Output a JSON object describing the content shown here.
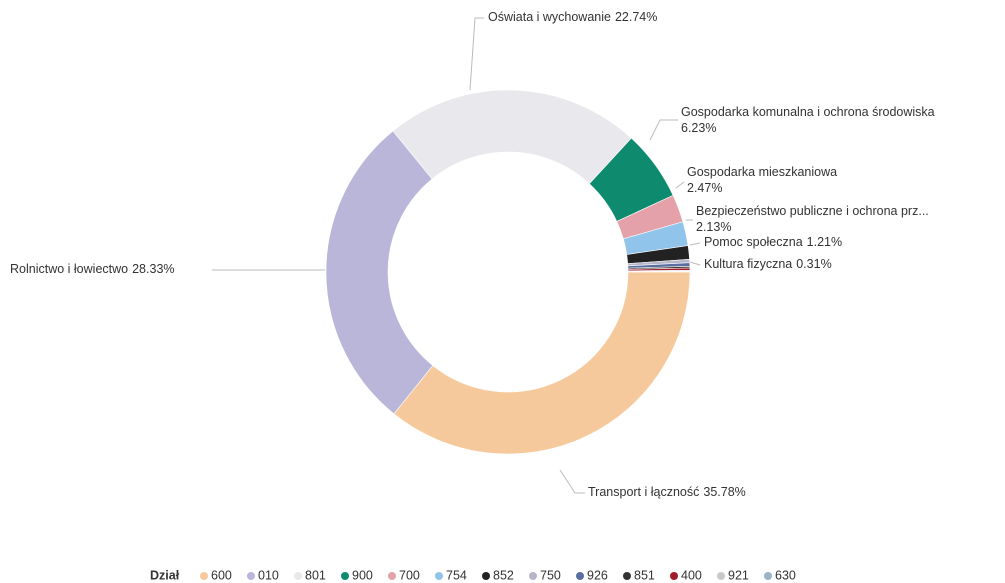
{
  "chart_data": {
    "type": "donut",
    "legend_title": "Dział",
    "series": [
      {
        "name": "600",
        "color": "#f6c99c",
        "label": "Transport i łączność",
        "values": [
          35.78
        ],
        "value_labels": [
          "35.78%"
        ]
      },
      {
        "name": "010",
        "color": "#b9b6da",
        "label": "Rolnictwo i łowiectwo",
        "values": [
          28.33
        ],
        "value_labels": [
          "28.33%"
        ]
      },
      {
        "name": "801",
        "color": "#e9e9ed",
        "label": "Oświata i wychowanie",
        "values": [
          22.74
        ],
        "value_labels": [
          "22.74%"
        ]
      },
      {
        "name": "900",
        "color": "#0e8a6e",
        "label": "Gospodarka komunalna i ochrona środowiska",
        "values": [
          6.23
        ],
        "value_labels": [
          "6.23%"
        ]
      },
      {
        "name": "700",
        "color": "#e4a1aa",
        "label": "Gospodarka mieszkaniowa",
        "values": [
          2.47
        ],
        "value_labels": [
          "2.47%"
        ]
      },
      {
        "name": "754",
        "color": "#90c4ea",
        "label": "Bezpieczeństwo publiczne i ochrona prz...",
        "values": [
          2.13
        ],
        "value_labels": [
          "2.13%"
        ]
      },
      {
        "name": "852",
        "color": "#222222",
        "label": "Pomoc społeczna",
        "values": [
          1.21
        ],
        "value_labels": [
          "1.21%"
        ]
      },
      {
        "name": "750",
        "color": "#b6b6ca",
        "label": null,
        "values": [
          0.3
        ],
        "value_labels": [
          null
        ]
      },
      {
        "name": "926",
        "color": "#5a6ea0",
        "label": "Kultura fizyczna",
        "values": [
          0.31
        ],
        "value_labels": [
          "0.31%"
        ]
      },
      {
        "name": "851",
        "color": "#333333",
        "label": null,
        "values": [
          0.15
        ],
        "value_labels": [
          null
        ]
      },
      {
        "name": "400",
        "color": "#a01c2c",
        "label": null,
        "values": [
          0.2
        ],
        "value_labels": [
          null
        ]
      },
      {
        "name": "921",
        "color": "#c9c9c9",
        "label": null,
        "values": [
          0.1
        ],
        "value_labels": [
          null
        ]
      },
      {
        "name": "630",
        "color": "#9bb3c6",
        "label": null,
        "values": [
          0.05
        ],
        "value_labels": [
          null
        ]
      }
    ]
  }
}
